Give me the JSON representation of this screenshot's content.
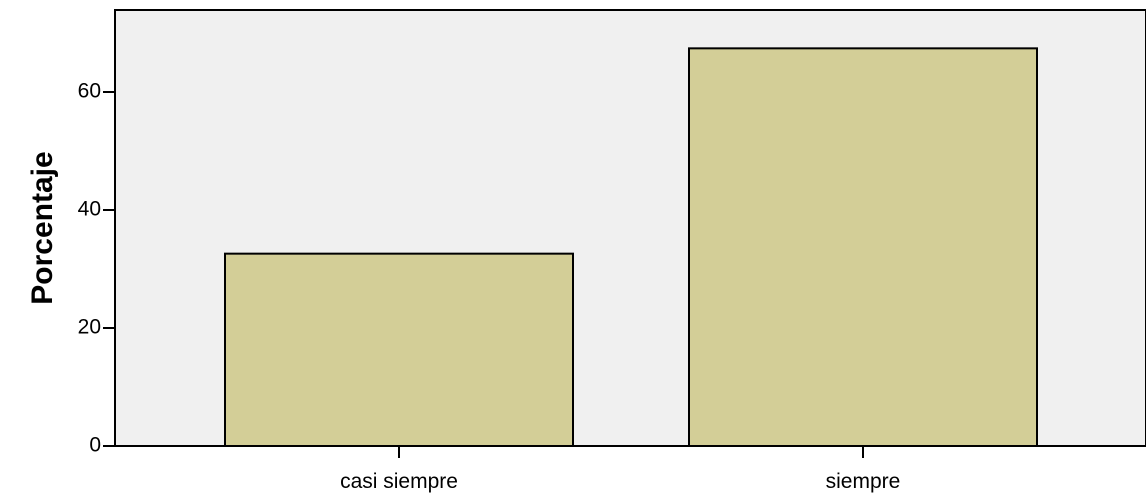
{
  "chart_data": {
    "type": "bar",
    "categories": [
      "casi siempre",
      "siempre"
    ],
    "values": [
      32.6,
      67.4
    ],
    "title": "",
    "xlabel": "",
    "ylabel": "Porcentaje",
    "ylim": [
      0,
      73
    ],
    "yticks": [
      0,
      20,
      40,
      60
    ],
    "grid": false,
    "legend": "none",
    "colors": {
      "bar_fill": "#d3ce97",
      "bar_stroke": "#000000",
      "plot_background": "#f0f0f0",
      "axis": "#000000"
    }
  }
}
